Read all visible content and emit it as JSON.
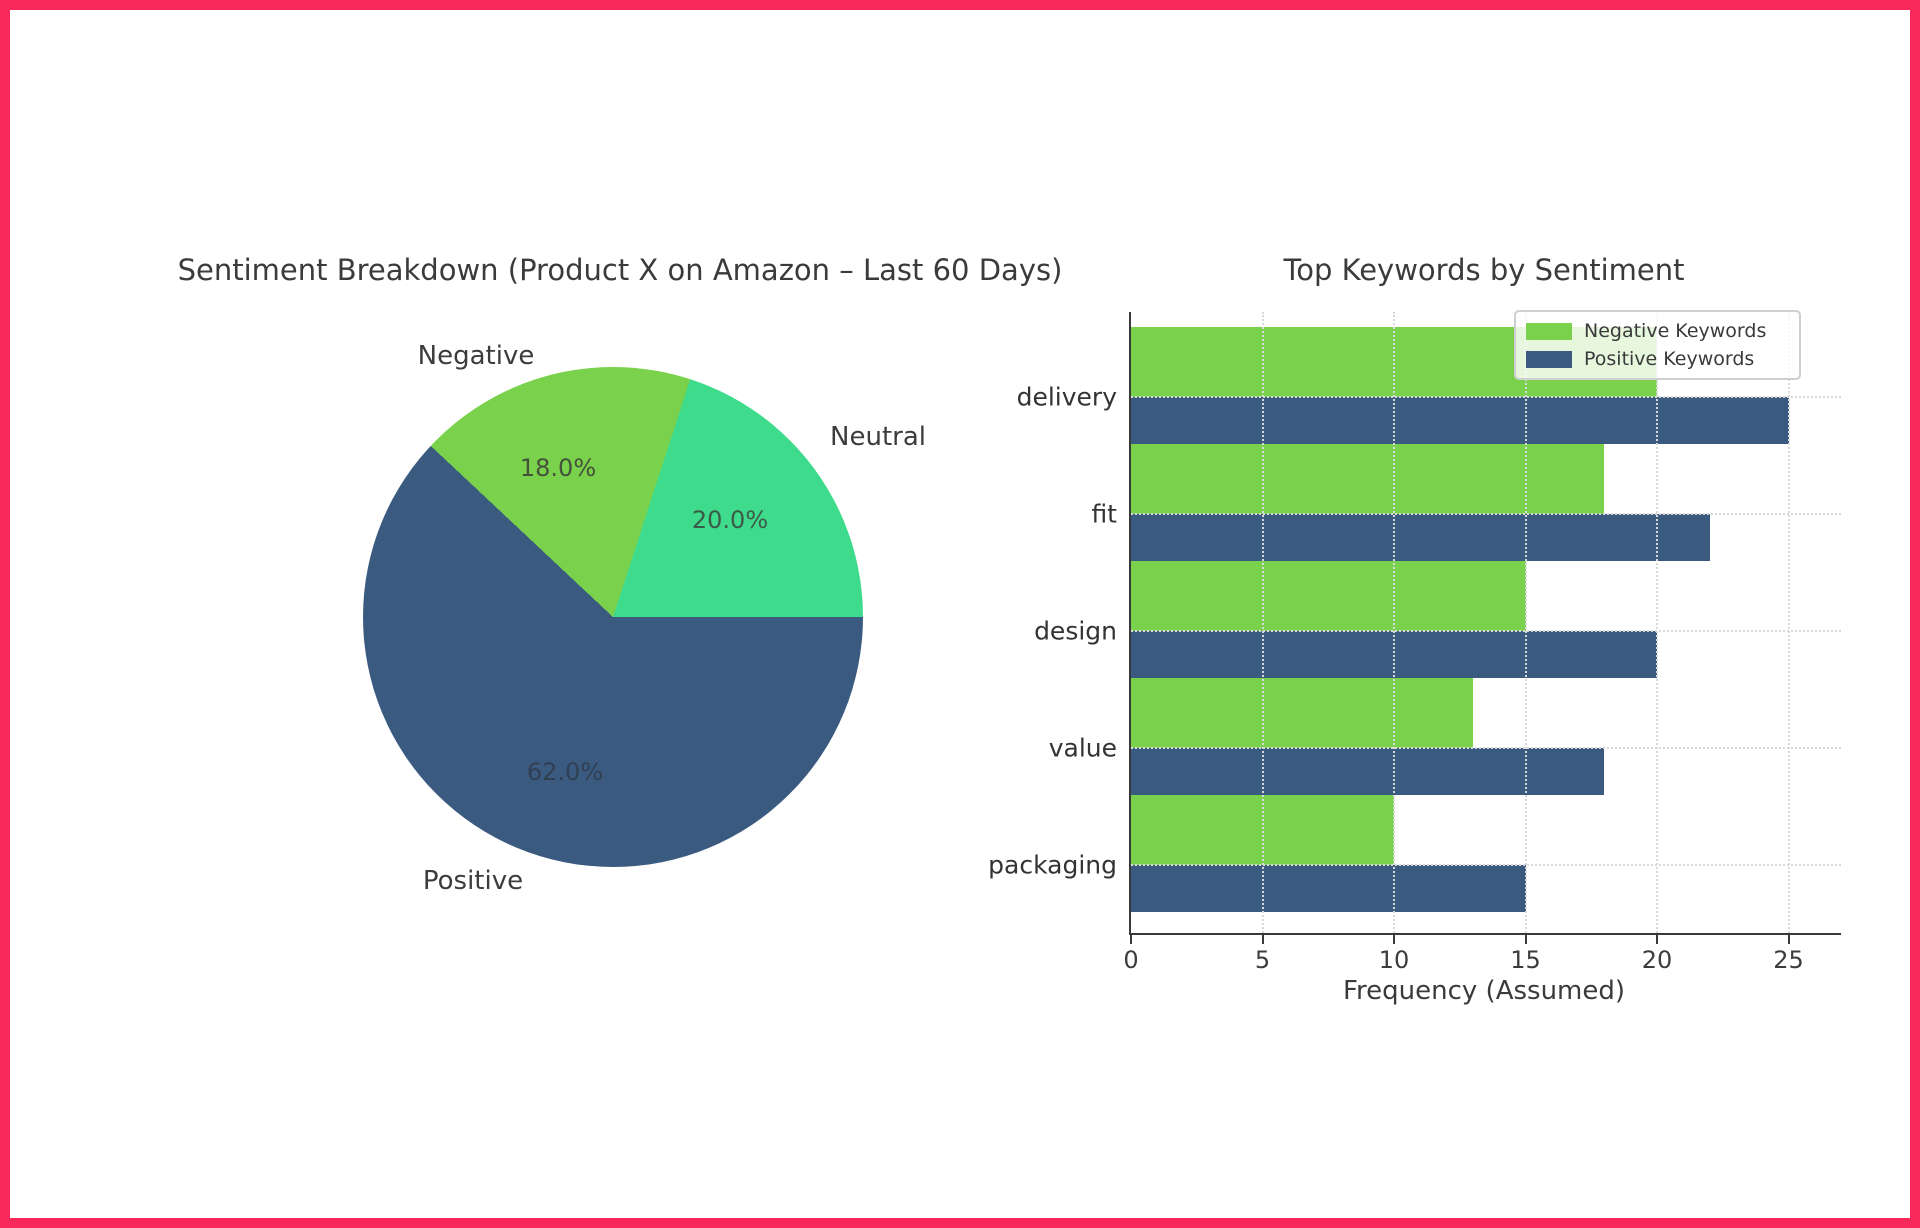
{
  "frame": {
    "border_color": "#f9285a"
  },
  "chart_data": [
    {
      "type": "pie",
      "title": "Sentiment Breakdown (Product X on Amazon – Last 60 Days)",
      "start_angle_deg": 0,
      "direction": "counterclockwise",
      "slices": [
        {
          "label": "Neutral",
          "value": 20.0,
          "pct_label": "20.0%",
          "color": "#3edb8c"
        },
        {
          "label": "Negative",
          "value": 18.0,
          "pct_label": "18.0%",
          "color": "#79d14c"
        },
        {
          "label": "Positive",
          "value": 62.0,
          "pct_label": "62.0%",
          "color": "#3a5a80"
        }
      ]
    },
    {
      "type": "bar",
      "orientation": "horizontal",
      "title": "Top Keywords by Sentiment",
      "xlabel": "Frequency (Assumed)",
      "categories": [
        "delivery",
        "fit",
        "design",
        "value",
        "packaging"
      ],
      "series": [
        {
          "name": "Negative Keywords",
          "color": "#79d14c",
          "values": [
            20,
            18,
            15,
            13,
            10
          ]
        },
        {
          "name": "Positive Keywords",
          "color": "#3a5a80",
          "values": [
            25,
            22,
            20,
            18,
            15
          ]
        }
      ],
      "x_ticks": [
        0,
        5,
        10,
        15,
        20,
        25
      ],
      "xlim": [
        0,
        27
      ],
      "grid": "dotted",
      "legend_position": "upper right"
    }
  ]
}
